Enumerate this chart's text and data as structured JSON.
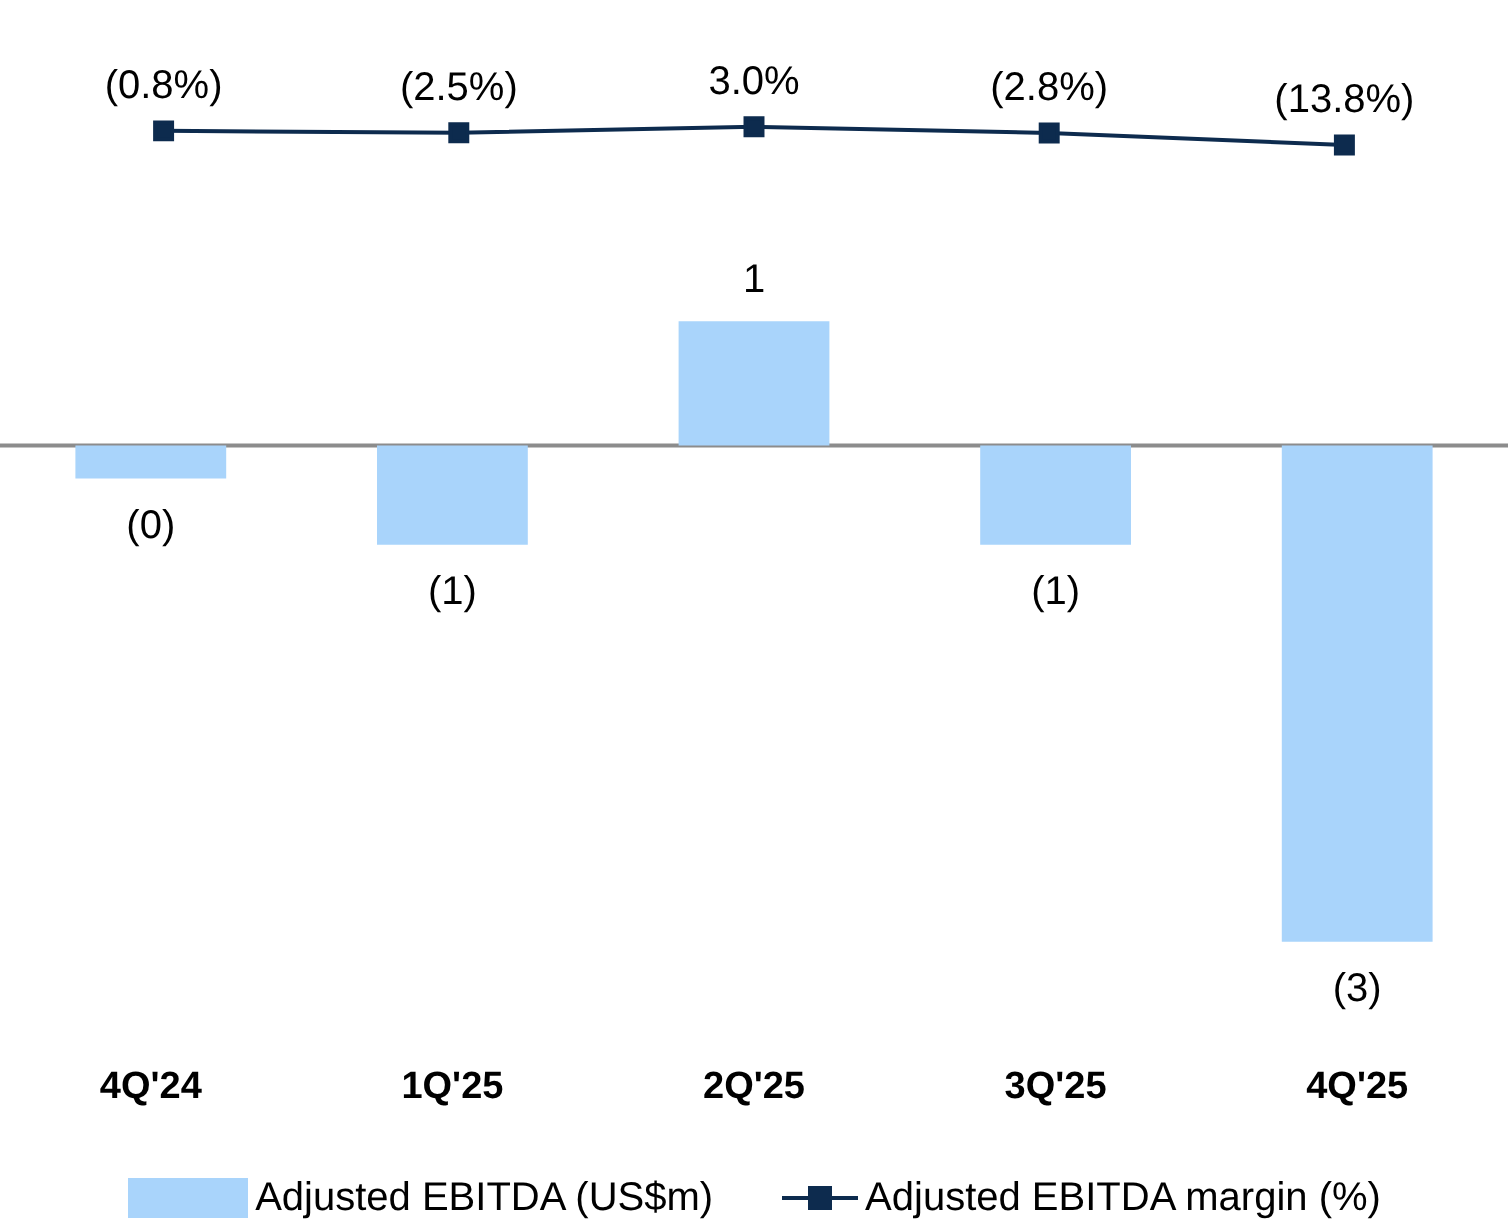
{
  "chart_data": [
    {
      "type": "line",
      "categories": [
        null,
        null,
        null,
        null,
        null
      ],
      "series": [
        {
          "name": "Adjusted EBITDA margin (%)",
          "color": "#0d2b4e",
          "values": [
            -0.8,
            -2.5,
            3.0,
            -2.8,
            -13.8
          ],
          "value_labels": [
            "(0.8%)",
            "(2.5%)",
            "3.0%",
            "(2.8%)",
            "(13.8%)"
          ]
        }
      ],
      "tick_labels": false,
      "grid": false,
      "legend": "bottom right",
      "marker": "square",
      "line_style": "solid"
    },
    {
      "type": "bar",
      "categories": [
        "4Q'24",
        "1Q'25",
        "2Q'25",
        "3Q'25",
        "4Q'25"
      ],
      "series": [
        {
          "name": "Adjusted EBITDA (US$m)",
          "color": "#a9d4fb",
          "values": [
            -0.2,
            -0.6,
            0.75,
            -0.6,
            -3.0
          ],
          "value_labels": [
            "(0)",
            "(1)",
            "1",
            "(1)",
            "(3)"
          ]
        }
      ],
      "ref_lines": [
        {
          "axis": "y",
          "value": 0,
          "color": "#8c8c8c"
        }
      ],
      "tick_labels": "x",
      "grid": false,
      "legend": "bottom left"
    }
  ]
}
